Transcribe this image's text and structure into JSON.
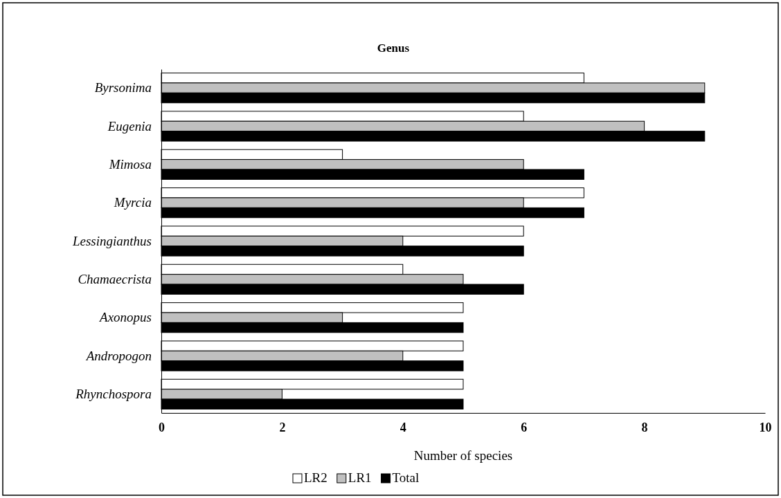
{
  "chart_data": {
    "type": "bar",
    "orientation": "horizontal",
    "title": "Genus",
    "xlabel": "Number of species",
    "categories": [
      "Byrsonima",
      "Eugenia",
      "Mimosa",
      "Myrcia",
      "Lessingianthus",
      "Chamaecrista",
      "Axonopus",
      "Andropogon",
      "Rhynchospora"
    ],
    "series": [
      {
        "name": "LR2",
        "color": "#ffffff",
        "values": [
          7,
          6,
          3,
          7,
          6,
          4,
          5,
          5,
          5
        ]
      },
      {
        "name": "LR1",
        "color": "#c0c0c0",
        "values": [
          9,
          8,
          6,
          6,
          4,
          5,
          3,
          4,
          2
        ]
      },
      {
        "name": "Total",
        "color": "#000000",
        "values": [
          9,
          9,
          7,
          7,
          6,
          6,
          5,
          5,
          5
        ]
      }
    ],
    "xlim": [
      0,
      10
    ],
    "xticks": [
      0,
      2,
      4,
      6,
      8,
      10
    ],
    "grid": false,
    "legend": "bottom"
  }
}
